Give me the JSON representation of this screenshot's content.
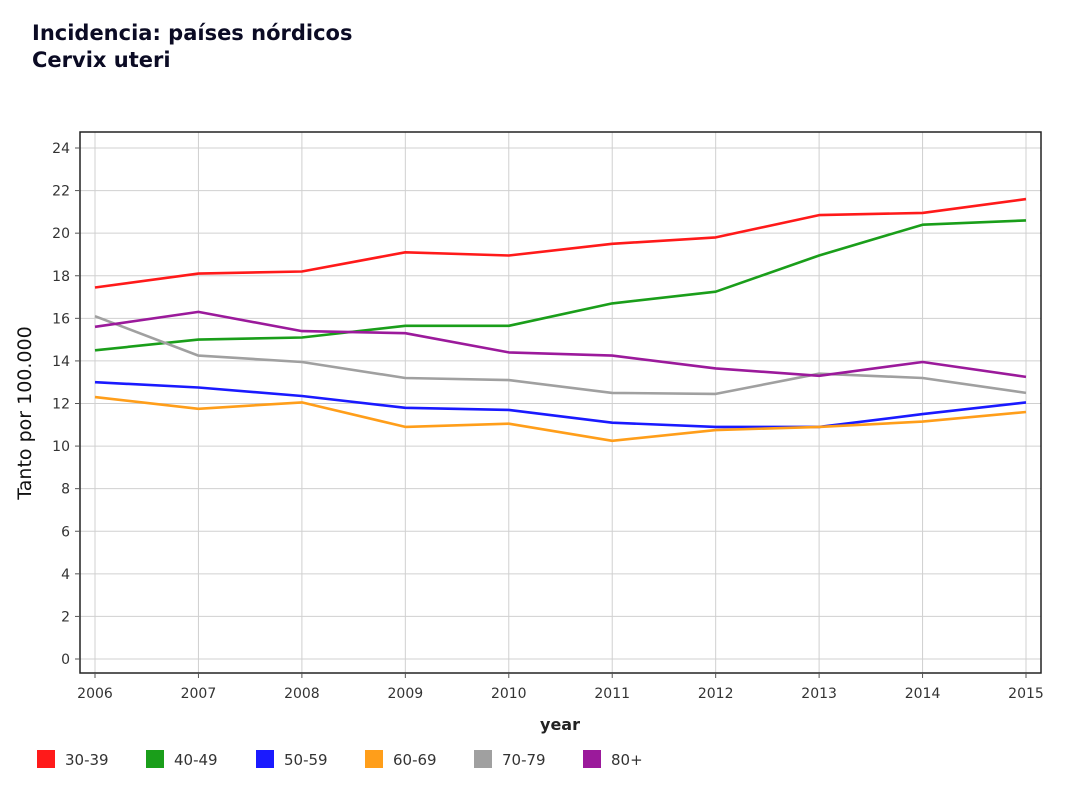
{
  "title": {
    "line1": "Incidencia: países nórdicos",
    "line2": "Cervix uteri"
  },
  "chart_data": {
    "type": "line",
    "x": [
      2006,
      2007,
      2008,
      2009,
      2010,
      2011,
      2012,
      2013,
      2014,
      2015
    ],
    "xlabel": "year",
    "ylabel": "Tanto por 100.000",
    "ylim": [
      0,
      24
    ],
    "yticks": [
      0,
      2,
      4,
      6,
      8,
      10,
      12,
      14,
      16,
      18,
      20,
      22,
      24
    ],
    "grid": true,
    "legend_position": "bottom",
    "series": [
      {
        "name": "30-39",
        "color": "#ff1a1a",
        "values": [
          17.45,
          18.1,
          18.2,
          19.1,
          18.95,
          19.5,
          19.8,
          20.85,
          20.95,
          21.6
        ]
      },
      {
        "name": "40-49",
        "color": "#1a9e1a",
        "values": [
          14.5,
          15.0,
          15.1,
          15.65,
          15.65,
          16.7,
          17.25,
          18.95,
          20.4,
          20.6
        ]
      },
      {
        "name": "50-59",
        "color": "#1a1aff",
        "values": [
          13.0,
          12.75,
          12.35,
          11.8,
          11.7,
          11.1,
          10.9,
          10.9,
          11.5,
          12.05
        ]
      },
      {
        "name": "60-69",
        "color": "#ff9e1a",
        "values": [
          12.3,
          11.75,
          12.05,
          10.9,
          11.05,
          10.25,
          10.75,
          10.9,
          11.15,
          11.6
        ]
      },
      {
        "name": "70-79",
        "color": "#a0a0a0",
        "values": [
          16.1,
          14.25,
          13.95,
          13.2,
          13.1,
          12.5,
          12.45,
          13.4,
          13.2,
          12.5
        ]
      },
      {
        "name": "80+",
        "color": "#9b1a9b",
        "values": [
          15.6,
          16.3,
          15.4,
          15.3,
          14.4,
          14.25,
          13.65,
          13.3,
          13.95,
          13.25
        ]
      }
    ]
  }
}
